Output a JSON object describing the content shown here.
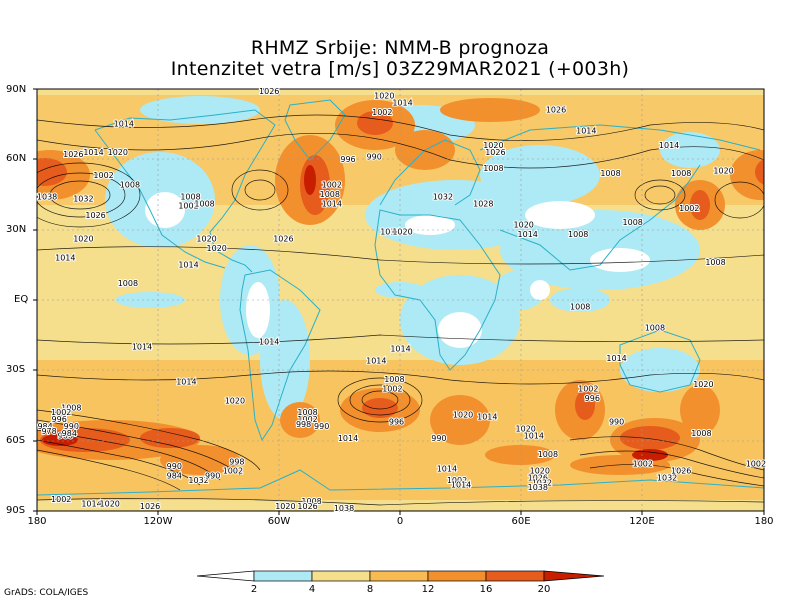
{
  "title": {
    "line1": "RHMZ Srbije: NMM-B prognoza",
    "line2": "Intenzitet vetra [m/s] 03Z29MAR2021 (+003h)"
  },
  "axes": {
    "lat_ticks": [
      {
        "value": 90,
        "label": "90N"
      },
      {
        "value": 60,
        "label": "60N"
      },
      {
        "value": 30,
        "label": "30N"
      },
      {
        "value": 0,
        "label": "EQ"
      },
      {
        "value": -30,
        "label": "30S"
      },
      {
        "value": -60,
        "label": "60S"
      },
      {
        "value": -90,
        "label": "90S"
      }
    ],
    "lon_ticks": [
      {
        "value": -180,
        "label": "180"
      },
      {
        "value": -120,
        "label": "120W"
      },
      {
        "value": -60,
        "label": "60W"
      },
      {
        "value": 0,
        "label": "0"
      },
      {
        "value": 60,
        "label": "60E"
      },
      {
        "value": 120,
        "label": "120E"
      },
      {
        "value": 180,
        "label": "180"
      }
    ]
  },
  "colorbar": {
    "levels": [
      "2",
      "4",
      "8",
      "12",
      "16",
      "20"
    ],
    "colors": [
      "#ffffff",
      "#aeeaf5",
      "#f5de8c",
      "#f8bb52",
      "#f2902e",
      "#e65c1c",
      "#c81e00"
    ]
  },
  "pressure_labels": [
    {
      "lon": -137,
      "lat": 75,
      "text": "1014"
    },
    {
      "lon": -162,
      "lat": 62,
      "text": "1026"
    },
    {
      "lon": -152,
      "lat": 63,
      "text": "1014"
    },
    {
      "lon": -140,
      "lat": 63,
      "text": "1020"
    },
    {
      "lon": -175,
      "lat": 44,
      "text": "1038"
    },
    {
      "lon": -157,
      "lat": 43,
      "text": "1032"
    },
    {
      "lon": -147,
      "lat": 53,
      "text": "1002"
    },
    {
      "lon": -134,
      "lat": 49,
      "text": "1008"
    },
    {
      "lon": -151,
      "lat": 36,
      "text": "1026"
    },
    {
      "lon": -157,
      "lat": 26,
      "text": "1020"
    },
    {
      "lon": -166,
      "lat": 18,
      "text": "1014"
    },
    {
      "lon": -105,
      "lat": 40,
      "text": "1002"
    },
    {
      "lon": -104,
      "lat": 44,
      "text": "1008"
    },
    {
      "lon": -97,
      "lat": 41,
      "text": "1008"
    },
    {
      "lon": -96,
      "lat": 26,
      "text": "1020"
    },
    {
      "lon": -91,
      "lat": 22,
      "text": "1020"
    },
    {
      "lon": -105,
      "lat": 15,
      "text": "1014"
    },
    {
      "lon": -58,
      "lat": 26,
      "text": "1026"
    },
    {
      "lon": -34,
      "lat": 49,
      "text": "1002"
    },
    {
      "lon": -35,
      "lat": 45,
      "text": "1008"
    },
    {
      "lon": -34,
      "lat": 41,
      "text": "1014"
    },
    {
      "lon": -26,
      "lat": 60,
      "text": "996"
    },
    {
      "lon": -13,
      "lat": 61,
      "text": "990"
    },
    {
      "lon": -9,
      "lat": 80,
      "text": "1002"
    },
    {
      "lon": 1,
      "lat": 84,
      "text": "1014"
    },
    {
      "lon": -8,
      "lat": 87,
      "text": "1020"
    },
    {
      "lon": -65,
      "lat": 89,
      "text": "1026"
    },
    {
      "lon": -5,
      "lat": 29,
      "text": "1014"
    },
    {
      "lon": 1,
      "lat": 29,
      "text": "1020"
    },
    {
      "lon": 21,
      "lat": 44,
      "text": "1032"
    },
    {
      "lon": 41,
      "lat": 41,
      "text": "1028"
    },
    {
      "lon": 46,
      "lat": 66,
      "text": "1020"
    },
    {
      "lon": 47,
      "lat": 63,
      "text": "1026"
    },
    {
      "lon": 46,
      "lat": 56,
      "text": "1008"
    },
    {
      "lon": 61,
      "lat": 32,
      "text": "1020"
    },
    {
      "lon": 63,
      "lat": 28,
      "text": "1014"
    },
    {
      "lon": 88,
      "lat": 28,
      "text": "1008"
    },
    {
      "lon": 92,
      "lat": 72,
      "text": "1014"
    },
    {
      "lon": 133,
      "lat": 66,
      "text": "1014"
    },
    {
      "lon": 77,
      "lat": 81,
      "text": "1026"
    },
    {
      "lon": 104,
      "lat": 54,
      "text": "1008"
    },
    {
      "lon": 115,
      "lat": 33,
      "text": "1008"
    },
    {
      "lon": 139,
      "lat": 54,
      "text": "1008"
    },
    {
      "lon": 160,
      "lat": 55,
      "text": "1020"
    },
    {
      "lon": 143,
      "lat": 39,
      "text": "1002"
    },
    {
      "lon": 156,
      "lat": 16,
      "text": "1008"
    },
    {
      "lon": -135,
      "lat": 7,
      "text": "1008"
    },
    {
      "lon": 89,
      "lat": -3,
      "text": "1008"
    },
    {
      "lon": 126,
      "lat": -12,
      "text": "1008"
    },
    {
      "lon": 107,
      "lat": -25,
      "text": "1014"
    },
    {
      "lon": -128,
      "lat": -20,
      "text": "1014"
    },
    {
      "lon": -65,
      "lat": -18,
      "text": "1014"
    },
    {
      "lon": 0,
      "lat": -21,
      "text": "1014"
    },
    {
      "lon": -12,
      "lat": -26,
      "text": "1014"
    },
    {
      "lon": -106,
      "lat": -35,
      "text": "1014"
    },
    {
      "lon": -82,
      "lat": -43,
      "text": "1020"
    },
    {
      "lon": -3,
      "lat": -34,
      "text": "1008"
    },
    {
      "lon": -4,
      "lat": -38,
      "text": "1002"
    },
    {
      "lon": -2,
      "lat": -52,
      "text": "996"
    },
    {
      "lon": -26,
      "lat": -59,
      "text": "1014"
    },
    {
      "lon": -46,
      "lat": -48,
      "text": "1008"
    },
    {
      "lon": -46,
      "lat": -51,
      "text": "1002"
    },
    {
      "lon": -48,
      "lat": -53,
      "text": "998"
    },
    {
      "lon": -39,
      "lat": -54,
      "text": "990"
    },
    {
      "lon": 31,
      "lat": -49,
      "text": "1020"
    },
    {
      "lon": 43,
      "lat": -50,
      "text": "1014"
    },
    {
      "lon": 62,
      "lat": -55,
      "text": "1020"
    },
    {
      "lon": 66,
      "lat": -58,
      "text": "1014"
    },
    {
      "lon": 73,
      "lat": -66,
      "text": "1008"
    },
    {
      "lon": 19,
      "lat": -59,
      "text": "990"
    },
    {
      "lon": 93,
      "lat": -38,
      "text": "1002"
    },
    {
      "lon": 95,
      "lat": -42,
      "text": "996"
    },
    {
      "lon": 107,
      "lat": -52,
      "text": "990"
    },
    {
      "lon": 150,
      "lat": -36,
      "text": "1020"
    },
    {
      "lon": 149,
      "lat": -57,
      "text": "1008"
    },
    {
      "lon": -163,
      "lat": -46,
      "text": "1008"
    },
    {
      "lon": -168,
      "lat": -48,
      "text": "1002"
    },
    {
      "lon": -169,
      "lat": -51,
      "text": "996"
    },
    {
      "lon": -176,
      "lat": -54,
      "text": "984"
    },
    {
      "lon": -174,
      "lat": -56,
      "text": "978"
    },
    {
      "lon": -166,
      "lat": -58,
      "text": "966"
    },
    {
      "lon": -163,
      "lat": -54,
      "text": "990"
    },
    {
      "lon": -164,
      "lat": -57,
      "text": "984"
    },
    {
      "lon": -112,
      "lat": -71,
      "text": "990"
    },
    {
      "lon": -112,
      "lat": -75,
      "text": "984"
    },
    {
      "lon": -100,
      "lat": -77,
      "text": "1032"
    },
    {
      "lon": -93,
      "lat": -75,
      "text": "990"
    },
    {
      "lon": -81,
      "lat": -69,
      "text": "998"
    },
    {
      "lon": -83,
      "lat": -73,
      "text": "1002"
    },
    {
      "lon": -44,
      "lat": -86,
      "text": "1008"
    },
    {
      "lon": -57,
      "lat": -88,
      "text": "1020"
    },
    {
      "lon": -46,
      "lat": -88,
      "text": "1026"
    },
    {
      "lon": 23,
      "lat": -72,
      "text": "1014"
    },
    {
      "lon": 28,
      "lat": -77,
      "text": "1002"
    },
    {
      "lon": 30,
      "lat": -79,
      "text": "1014"
    },
    {
      "lon": 69,
      "lat": -73,
      "text": "1020"
    },
    {
      "lon": 68,
      "lat": -76,
      "text": "1026"
    },
    {
      "lon": 70,
      "lat": -78,
      "text": "1032"
    },
    {
      "lon": 68,
      "lat": -80,
      "text": "1038"
    },
    {
      "lon": 120,
      "lat": -70,
      "text": "1002"
    },
    {
      "lon": 132,
      "lat": -76,
      "text": "1032"
    },
    {
      "lon": 139,
      "lat": -73,
      "text": "1026"
    },
    {
      "lon": 176,
      "lat": -70,
      "text": "1002"
    },
    {
      "lon": -168,
      "lat": -85,
      "text": "1002"
    },
    {
      "lon": -153,
      "lat": -87,
      "text": "1014"
    },
    {
      "lon": -144,
      "lat": -87,
      "text": "1020"
    },
    {
      "lon": -124,
      "lat": -88,
      "text": "1026"
    },
    {
      "lon": -28,
      "lat": -89,
      "text": "1038"
    }
  ]
}
